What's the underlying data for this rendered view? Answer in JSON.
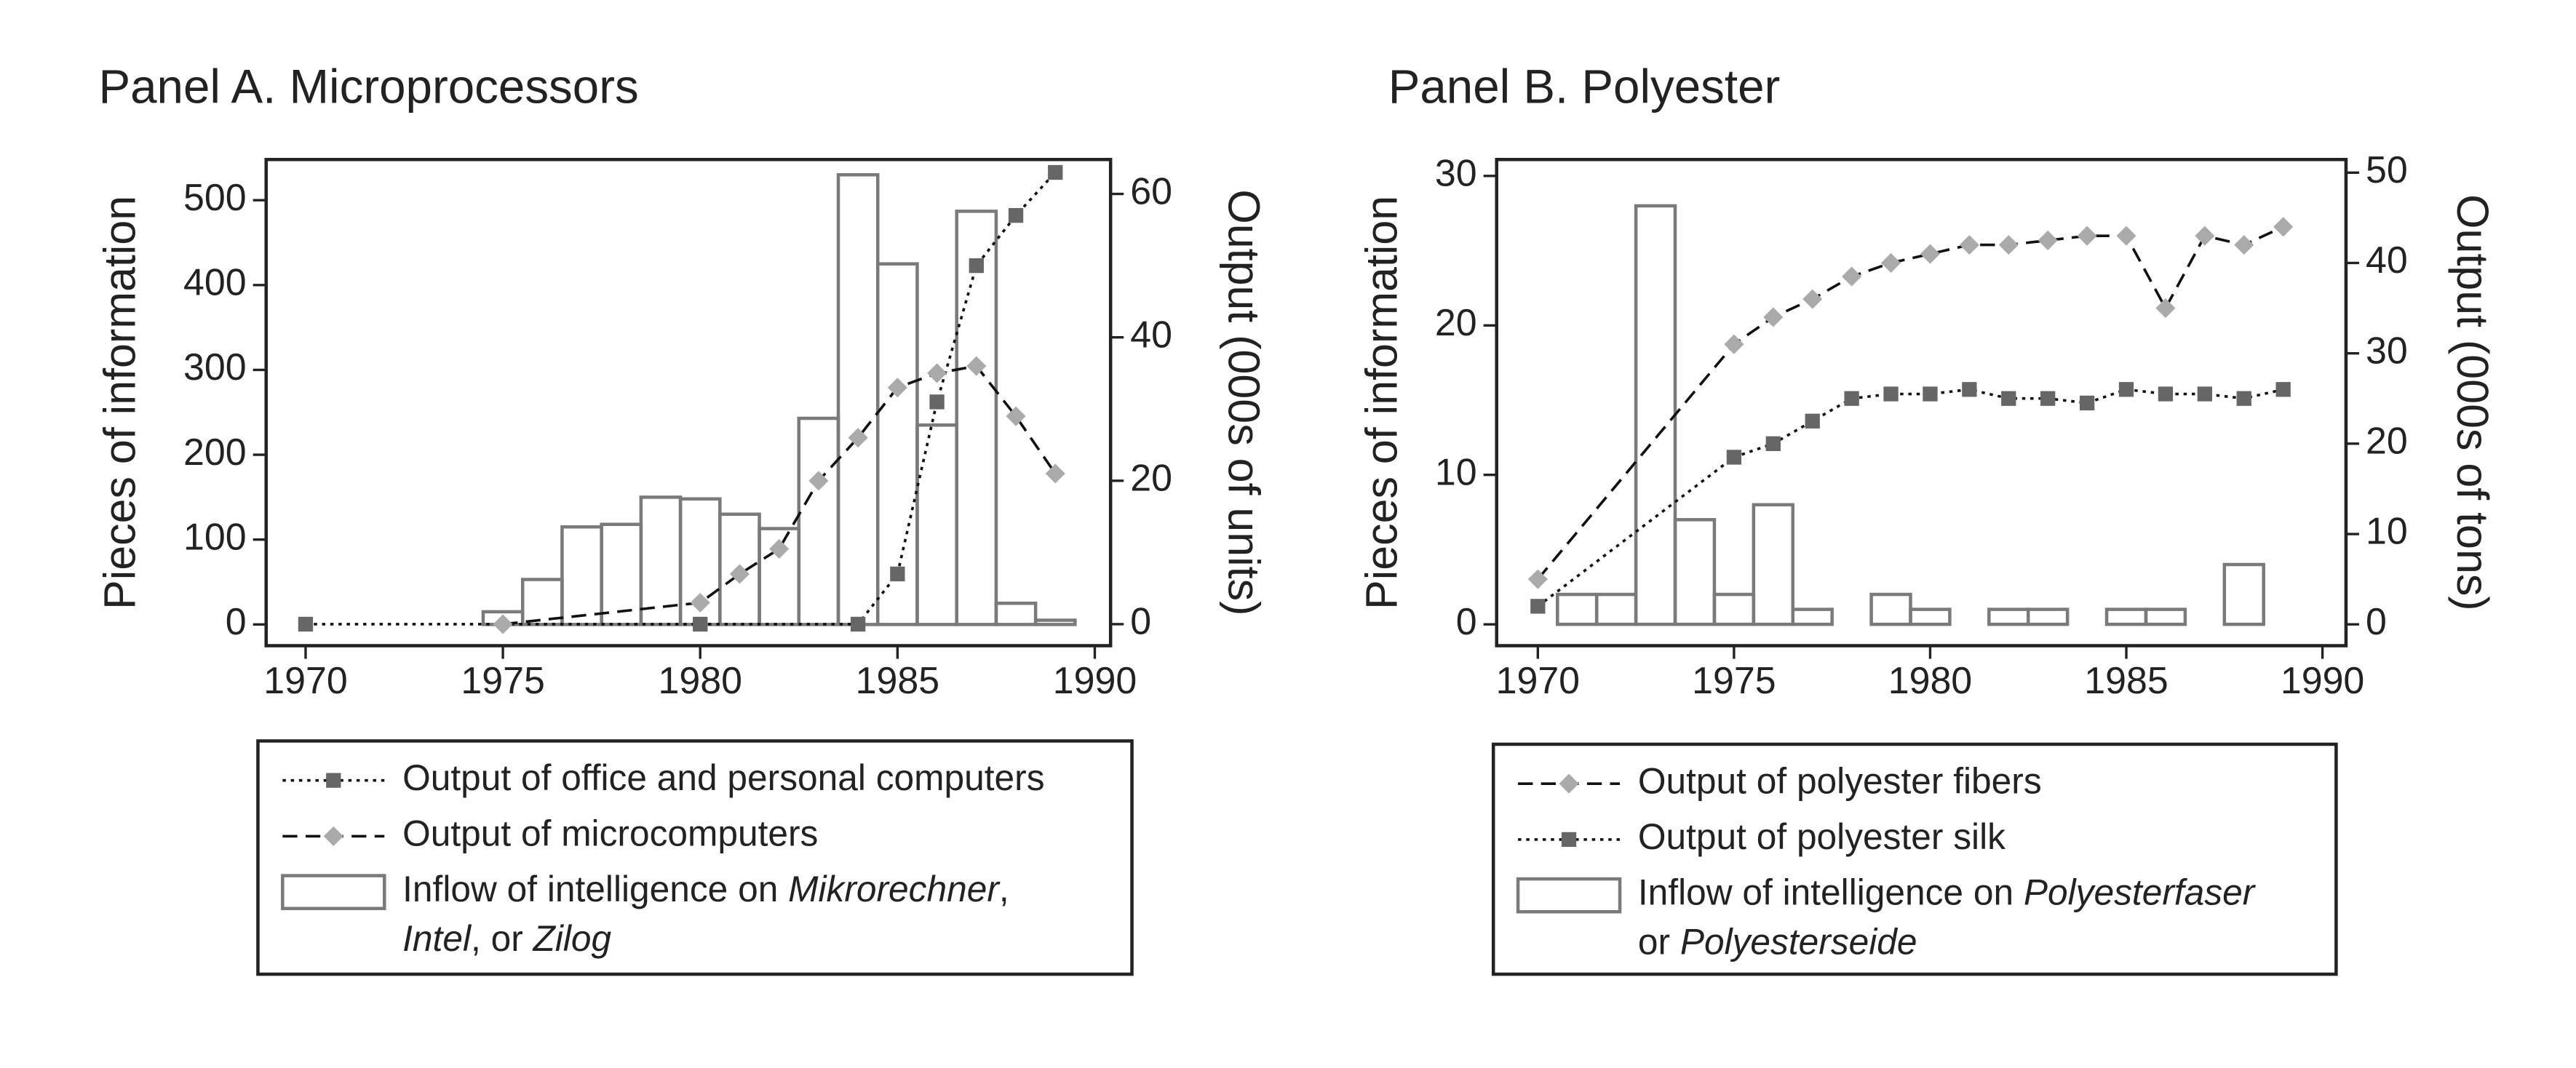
{
  "chart_data": [
    {
      "type": "combo",
      "title": "Panel A. Microprocessors",
      "ylabel": "Pieces of information",
      "y2label": "Output (000s of units)",
      "xlim": [
        1969,
        1990.4
      ],
      "xticks": [
        1970,
        1975,
        1980,
        1985,
        1990
      ],
      "ylim": [
        -25,
        548
      ],
      "yticks": [
        0,
        100,
        200,
        300,
        400,
        500
      ],
      "y2lim": [
        -3,
        64.8
      ],
      "y2ticks": [
        0,
        20,
        40,
        60
      ],
      "bars": {
        "name": [
          [
            {
              "text": "Inflow of intelligence on "
            },
            {
              "text": "Mikrorechner",
              "italic": true
            },
            {
              "text": ","
            }
          ],
          [
            {
              "text": "Intel",
              "italic": true
            },
            {
              "text": ", or "
            },
            {
              "text": "Zilog",
              "italic": true
            }
          ]
        ],
        "color": "#7a7a7a",
        "x": [
          1975,
          1976,
          1977,
          1978,
          1979,
          1980,
          1981,
          1982,
          1983,
          1984,
          1985,
          1986,
          1987,
          1988,
          1989
        ],
        "values": [
          15,
          53,
          115,
          118,
          150,
          148,
          130,
          113,
          243,
          530,
          425,
          235,
          487,
          25,
          5
        ]
      },
      "series": [
        {
          "name": "Output of office and personal computers",
          "color": "#666666",
          "dash": "dotted",
          "marker": "square",
          "axis": "y2",
          "x": [
            1970,
            1980,
            1984,
            1985,
            1986,
            1987,
            1988,
            1989
          ],
          "values": [
            0,
            0,
            0,
            7,
            31,
            50,
            57,
            63
          ]
        },
        {
          "name": "Output of microcomputers",
          "color": "#aaaaaa",
          "dash": "dashed",
          "marker": "diamond",
          "axis": "y2",
          "x": [
            1975,
            1980,
            1981,
            1982,
            1983,
            1984,
            1985,
            1986,
            1987,
            1988,
            1989
          ],
          "values": [
            0,
            3,
            7,
            10.5,
            20,
            26,
            33,
            35,
            36,
            29,
            21
          ]
        }
      ]
    },
    {
      "type": "combo",
      "title": "Panel B. Polyester",
      "ylabel": "Pieces of information",
      "y2label": "Output (000s of tons)",
      "xlim": [
        1968.95,
        1990.6
      ],
      "xticks": [
        1970,
        1975,
        1980,
        1985,
        1990
      ],
      "ylim": [
        -1.43,
        31.1
      ],
      "yticks": [
        0,
        10,
        20,
        30
      ],
      "y2lim": [
        -2.36,
        51.45
      ],
      "y2ticks": [
        0,
        10,
        20,
        30,
        40,
        50
      ],
      "bars": {
        "name": [
          [
            {
              "text": "Inflow of intelligence on "
            },
            {
              "text": "Polyesterfaser",
              "italic": true
            }
          ],
          [
            {
              "text": "or "
            },
            {
              "text": "Polyesterseide",
              "italic": true
            }
          ]
        ],
        "color": "#7a7a7a",
        "x": [
          1971,
          1972,
          1973,
          1974,
          1975,
          1976,
          1977,
          1979,
          1980,
          1982,
          1983,
          1985,
          1986,
          1988
        ],
        "values": [
          2,
          2,
          28,
          7,
          2,
          8,
          1,
          2,
          1,
          1,
          1,
          1,
          1,
          4
        ]
      },
      "series": [
        {
          "name": "Output of polyester fibers",
          "color": "#aaaaaa",
          "dash": "dashed",
          "marker": "diamond",
          "axis": "y2",
          "x": [
            1970,
            1975,
            1976,
            1977,
            1978,
            1979,
            1980,
            1981,
            1982,
            1983,
            1984,
            1985,
            1986,
            1987,
            1988,
            1989
          ],
          "values": [
            5,
            31,
            34,
            36,
            38.5,
            40,
            41,
            42,
            42,
            42.5,
            43,
            43,
            35,
            43,
            42,
            44
          ]
        },
        {
          "name": "Output of polyester silk",
          "color": "#666666",
          "dash": "dotted",
          "marker": "square",
          "axis": "y2",
          "x": [
            1970,
            1975,
            1976,
            1977,
            1978,
            1979,
            1980,
            1981,
            1982,
            1983,
            1984,
            1985,
            1986,
            1987,
            1988,
            1989
          ],
          "values": [
            2,
            18.5,
            20,
            22.5,
            25,
            25.5,
            25.5,
            26,
            25,
            25,
            24.5,
            26,
            25.5,
            25.5,
            25,
            26
          ]
        }
      ]
    }
  ]
}
